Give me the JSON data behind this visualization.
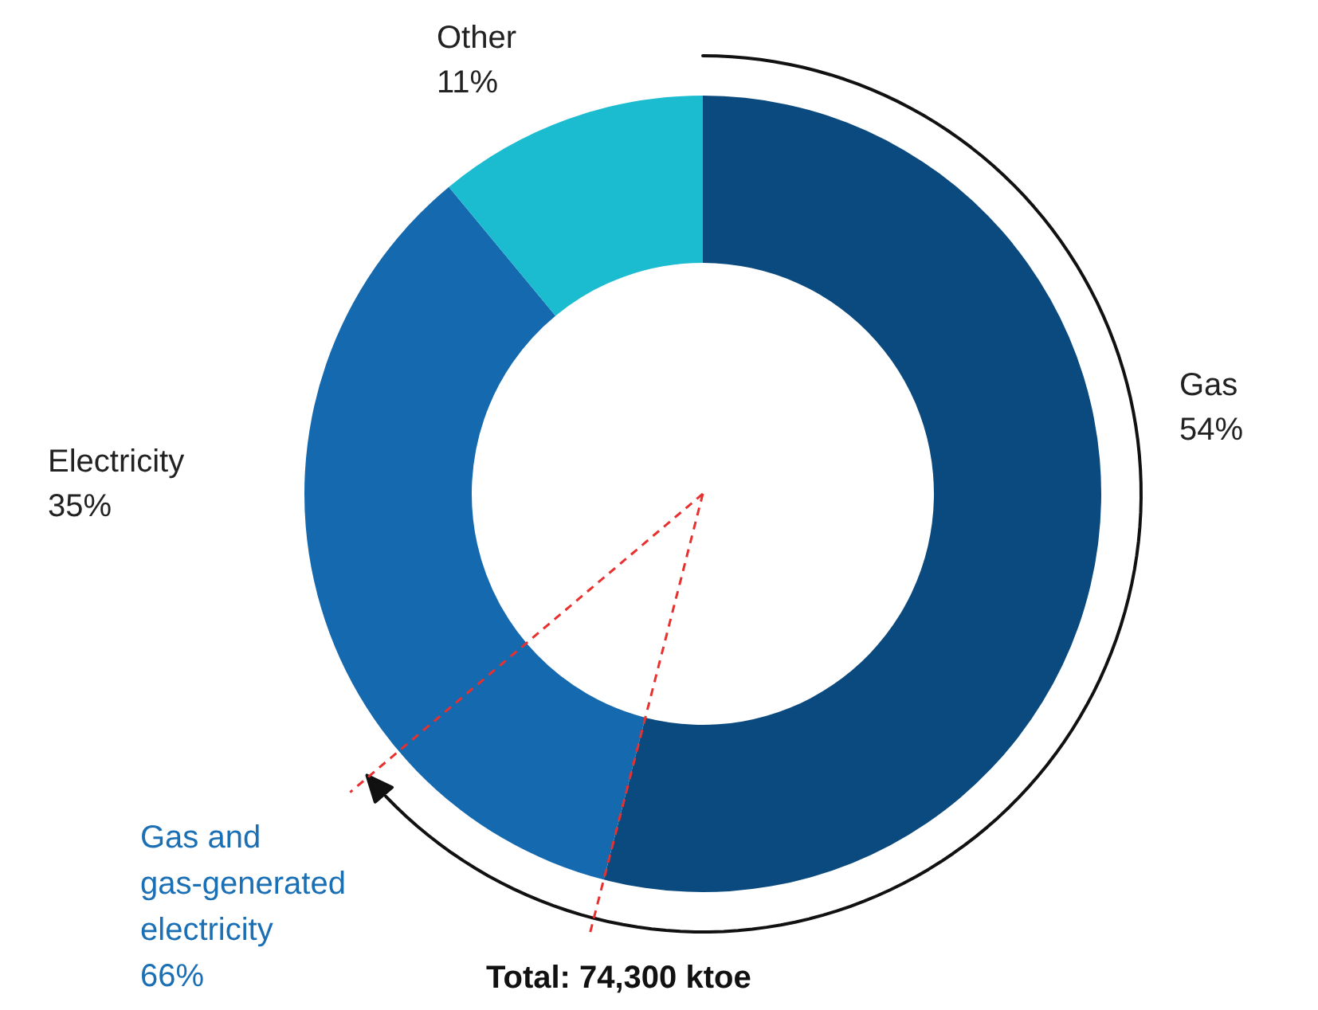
{
  "chart_data": {
    "type": "donut",
    "categories": [
      "Gas",
      "Electricity",
      "Other"
    ],
    "values": [
      54,
      35,
      11
    ],
    "colors": [
      "#0b4a7e",
      "#1569ae",
      "#1bbbd0"
    ],
    "value_labels": [
      "54%",
      "35%",
      "11%"
    ],
    "annotations": [
      "Gas and gas-generated electricity 66%",
      "Total: 74,300 ktoe"
    ]
  }
}
